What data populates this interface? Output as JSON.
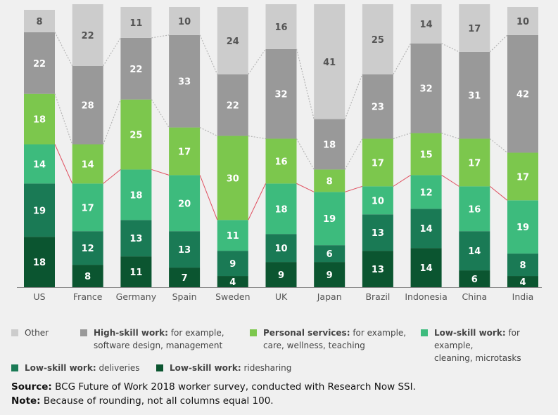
{
  "chart_data": {
    "type": "bar",
    "stacked": true,
    "categories": [
      "US",
      "France",
      "Germany",
      "Spain",
      "Sweden",
      "UK",
      "Japan",
      "Brazil",
      "Indonesia",
      "China",
      "India"
    ],
    "series": [
      {
        "name": "Low-skill work: ridesharing",
        "color": "#0b5530",
        "values": [
          18,
          8,
          11,
          7,
          4,
          9,
          9,
          13,
          14,
          6,
          4
        ]
      },
      {
        "name": "Low-skill work: deliveries",
        "color": "#1a7a55",
        "values": [
          19,
          12,
          13,
          13,
          9,
          10,
          6,
          13,
          14,
          14,
          8
        ]
      },
      {
        "name": "Low-skill work: for example, cleaning, microtasks",
        "color": "#3dbb7d",
        "values": [
          14,
          17,
          18,
          20,
          11,
          18,
          19,
          10,
          12,
          16,
          19
        ]
      },
      {
        "name": "Personal services: for example, care, wellness, teaching",
        "color": "#7cc74d",
        "values": [
          18,
          14,
          25,
          17,
          30,
          16,
          8,
          17,
          15,
          17,
          17
        ]
      },
      {
        "name": "High-skill work: for example, software design, management",
        "color": "#999999",
        "values": [
          22,
          28,
          22,
          33,
          22,
          32,
          18,
          23,
          32,
          31,
          42
        ]
      },
      {
        "name": "Other",
        "color": "#cccccc",
        "values": [
          8,
          22,
          11,
          10,
          24,
          16,
          41,
          25,
          14,
          17,
          10
        ]
      }
    ],
    "ylim": [
      0,
      100
    ],
    "gig_line_color": "#e05060",
    "connector_color": "#b5b5b5"
  },
  "legend": [
    {
      "bold": "Other",
      "rest": "",
      "rest2": "",
      "color": "#cccccc"
    },
    {
      "bold": "High-skill work:",
      "rest": " for example,",
      "rest2": "software design, management",
      "color": "#999999"
    },
    {
      "bold": "Personal services:",
      "rest": " for example,",
      "rest2": "care, wellness, teaching",
      "color": "#7cc74d"
    },
    {
      "bold": "Low-skill work:",
      "rest": " for example,",
      "rest2": "cleaning, microtasks",
      "color": "#3dbb7d"
    },
    {
      "bold": "Low-skill work:",
      "rest": " deliveries",
      "rest2": "",
      "color": "#1a7a55"
    },
    {
      "bold": "Low-skill work:",
      "rest": " ridesharing",
      "rest2": "",
      "color": "#0b5530"
    }
  ],
  "footer": {
    "source_label": "Source:",
    "source_text": " BCG Future of Work 2018 worker survey, conducted with Research Now SSI.",
    "note_label": "Note:",
    "note_text": " Because of rounding, not all columns equal 100."
  }
}
